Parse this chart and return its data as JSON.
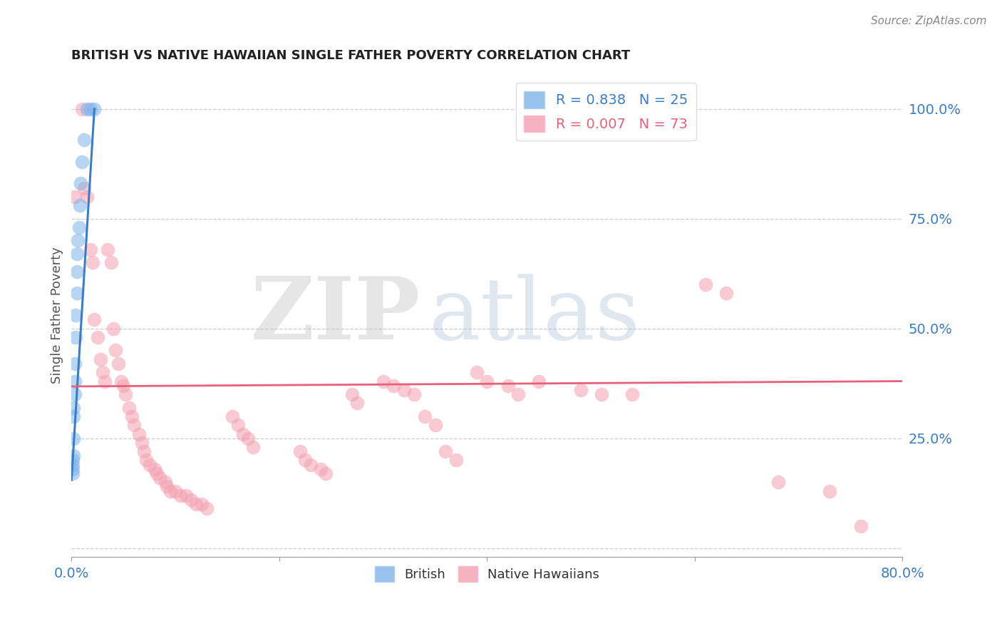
{
  "title": "BRITISH VS NATIVE HAWAIIAN SINGLE FATHER POVERTY CORRELATION CHART",
  "source": "Source: ZipAtlas.com",
  "ylabel": "Single Father Poverty",
  "xlim": [
    0.0,
    0.8
  ],
  "ylim": [
    -0.02,
    1.08
  ],
  "xticks": [
    0.0,
    0.2,
    0.4,
    0.6,
    0.8
  ],
  "xticklabels": [
    "0.0%",
    "",
    "",
    "",
    "80.0%"
  ],
  "yticks_right": [
    0.25,
    0.5,
    0.75,
    1.0
  ],
  "yticklabels_right": [
    "25.0%",
    "50.0%",
    "75.0%",
    "100.0%"
  ],
  "british_R": "0.838",
  "british_N": "25",
  "hawaiian_R": "0.007",
  "hawaiian_N": "73",
  "british_color": "#7EB3E8",
  "hawaiian_color": "#F4A0B0",
  "trendline_british_color": "#3A7DC9",
  "trendline_hawaiian_color": "#E8607A",
  "watermark_zip": "ZIP",
  "watermark_atlas": "atlas",
  "british_x": [
    0.001,
    0.001,
    0.001,
    0.001,
    0.002,
    0.002,
    0.002,
    0.002,
    0.003,
    0.003,
    0.003,
    0.004,
    0.004,
    0.005,
    0.005,
    0.005,
    0.006,
    0.007,
    0.008,
    0.009,
    0.01,
    0.012,
    0.015,
    0.018,
    0.022
  ],
  "british_y": [
    0.17,
    0.18,
    0.19,
    0.2,
    0.21,
    0.25,
    0.3,
    0.32,
    0.35,
    0.38,
    0.42,
    0.48,
    0.53,
    0.58,
    0.63,
    0.67,
    0.7,
    0.73,
    0.78,
    0.83,
    0.88,
    0.93,
    1.0,
    1.0,
    1.0
  ],
  "hawaiian_x": [
    0.003,
    0.01,
    0.012,
    0.015,
    0.018,
    0.02,
    0.022,
    0.025,
    0.028,
    0.03,
    0.032,
    0.035,
    0.038,
    0.04,
    0.042,
    0.045,
    0.048,
    0.05,
    0.052,
    0.055,
    0.058,
    0.06,
    0.065,
    0.068,
    0.07,
    0.072,
    0.075,
    0.08,
    0.082,
    0.085,
    0.09,
    0.092,
    0.095,
    0.1,
    0.105,
    0.11,
    0.115,
    0.12,
    0.125,
    0.13,
    0.155,
    0.16,
    0.165,
    0.17,
    0.175,
    0.22,
    0.225,
    0.23,
    0.24,
    0.245,
    0.27,
    0.275,
    0.3,
    0.31,
    0.32,
    0.33,
    0.34,
    0.35,
    0.36,
    0.37,
    0.39,
    0.4,
    0.42,
    0.43,
    0.45,
    0.49,
    0.51,
    0.54,
    0.61,
    0.63,
    0.68,
    0.73,
    0.76
  ],
  "hawaiian_y": [
    0.8,
    1.0,
    0.82,
    0.8,
    0.68,
    0.65,
    0.52,
    0.48,
    0.43,
    0.4,
    0.38,
    0.68,
    0.65,
    0.5,
    0.45,
    0.42,
    0.38,
    0.37,
    0.35,
    0.32,
    0.3,
    0.28,
    0.26,
    0.24,
    0.22,
    0.2,
    0.19,
    0.18,
    0.17,
    0.16,
    0.15,
    0.14,
    0.13,
    0.13,
    0.12,
    0.12,
    0.11,
    0.1,
    0.1,
    0.09,
    0.3,
    0.28,
    0.26,
    0.25,
    0.23,
    0.22,
    0.2,
    0.19,
    0.18,
    0.17,
    0.35,
    0.33,
    0.38,
    0.37,
    0.36,
    0.35,
    0.3,
    0.28,
    0.22,
    0.2,
    0.4,
    0.38,
    0.37,
    0.35,
    0.38,
    0.36,
    0.35,
    0.35,
    0.6,
    0.58,
    0.15,
    0.13,
    0.05
  ],
  "grid_yticks": [
    0.0,
    0.25,
    0.5,
    0.75,
    1.0
  ]
}
